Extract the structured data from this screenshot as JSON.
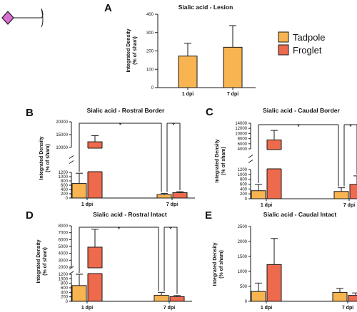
{
  "colors": {
    "tadpole": "#f8b451",
    "froglet": "#ee6a4c",
    "outline": "#1a1a1a",
    "glycan_symbol": "#d86fd2"
  },
  "legend": {
    "tadpole": "Tadpole",
    "froglet": "Froglet"
  },
  "icon": "sialic-acid-diamond-icon",
  "chart_data": [
    {
      "letter": "A",
      "title": "Sialic acid - Lesion",
      "type": "bar",
      "ylabel": [
        "Integrated Density",
        "(% of sham)"
      ],
      "categories": [
        "1 dpi",
        "7 dpi"
      ],
      "ylim": [
        0,
        400
      ],
      "yticks": [
        0,
        100,
        200,
        300,
        400
      ],
      "series": [
        {
          "name": "Tadpole",
          "values": [
            172,
            220
          ],
          "errors": [
            70,
            118
          ]
        }
      ],
      "axis_break": null,
      "significance": []
    },
    {
      "letter": "B",
      "title": "Sialic acid - Rostral Border",
      "type": "bar",
      "ylabel": [
        "Integrated Density",
        "(% of sham)"
      ],
      "categories": [
        "1 dpi",
        "7 dpi"
      ],
      "ylim": [
        0,
        20000
      ],
      "yticks": [
        0,
        200,
        400,
        600,
        800,
        1000,
        1200,
        10000,
        15000,
        20000
      ],
      "axis_break": {
        "lower_max": 1200,
        "upper_min": 10000
      },
      "series": [
        {
          "name": "Tadpole",
          "values": [
            680,
            160
          ],
          "errors": [
            480,
            60
          ]
        },
        {
          "name": "Froglet",
          "values": [
            12200,
            250
          ],
          "errors": [
            2400,
            50
          ]
        }
      ],
      "significance": [
        {
          "from": [
            0,
            0
          ],
          "to": [
            0,
            1
          ],
          "label": "*"
        },
        {
          "from": [
            0,
            1
          ],
          "to": [
            1,
            1
          ],
          "label": "*"
        }
      ]
    },
    {
      "letter": "C",
      "title": "Sialic acid - Caudal Border",
      "type": "bar",
      "ylabel": [
        "Integrated Density",
        "(% of sham)"
      ],
      "categories": [
        "1 dpi",
        "7 dpi"
      ],
      "ylim": [
        0,
        14000
      ],
      "yticks": [
        0,
        200,
        400,
        600,
        800,
        1000,
        1200,
        4000,
        6000,
        8000,
        10000,
        12000,
        14000
      ],
      "axis_break": {
        "lower_max": 1200,
        "upper_min": 4000
      },
      "series": [
        {
          "name": "Tadpole",
          "values": [
            330,
            300
          ],
          "errors": [
            260,
            150
          ]
        },
        {
          "name": "Froglet",
          "values": [
            7500,
            590
          ],
          "errors": [
            3700,
            350
          ]
        }
      ],
      "significance": [
        {
          "from": [
            0,
            0
          ],
          "to": [
            0,
            1
          ],
          "label": "*"
        },
        {
          "from": [
            0,
            1
          ],
          "to": [
            1,
            1
          ],
          "label": "*"
        }
      ]
    },
    {
      "letter": "D",
      "title": "Sialic acid - Rostral Intact",
      "type": "bar",
      "ylabel": [
        "Integrated Density",
        "(% of sham)"
      ],
      "categories": [
        "1 dpi",
        "7 dpi"
      ],
      "ylim": [
        0,
        8000
      ],
      "yticks": [
        0,
        200,
        400,
        600,
        800,
        1000,
        1200,
        2000,
        3000,
        4000,
        5000,
        6000,
        7000,
        8000
      ],
      "axis_break": {
        "lower_max": 1200,
        "upper_min": 2000
      },
      "series": [
        {
          "name": "Tadpole",
          "values": [
            700,
            270
          ],
          "errors": [
            500,
            130
          ]
        },
        {
          "name": "Froglet",
          "values": [
            4900,
            210
          ],
          "errors": [
            2600,
            50
          ]
        }
      ],
      "significance": [
        {
          "from": [
            0,
            0
          ],
          "to": [
            0,
            1
          ],
          "label": "*"
        },
        {
          "from": [
            0,
            1
          ],
          "to": [
            1,
            1
          ],
          "label": "*"
        }
      ]
    },
    {
      "letter": "E",
      "title": "Sialic acid - Caudal Intact",
      "type": "bar",
      "ylabel": [
        "Integrated Density",
        "(% of sham)"
      ],
      "categories": [
        "1 dpi",
        "7 dpi"
      ],
      "ylim": [
        0,
        2500
      ],
      "yticks": [
        0,
        500,
        1000,
        1500,
        2000,
        2500
      ],
      "axis_break": null,
      "series": [
        {
          "name": "Tadpole",
          "values": [
            330,
            300
          ],
          "errors": [
            280,
            130
          ]
        },
        {
          "name": "Froglet",
          "values": [
            1230,
            200
          ],
          "errors": [
            870,
            80
          ]
        }
      ],
      "significance": []
    }
  ]
}
